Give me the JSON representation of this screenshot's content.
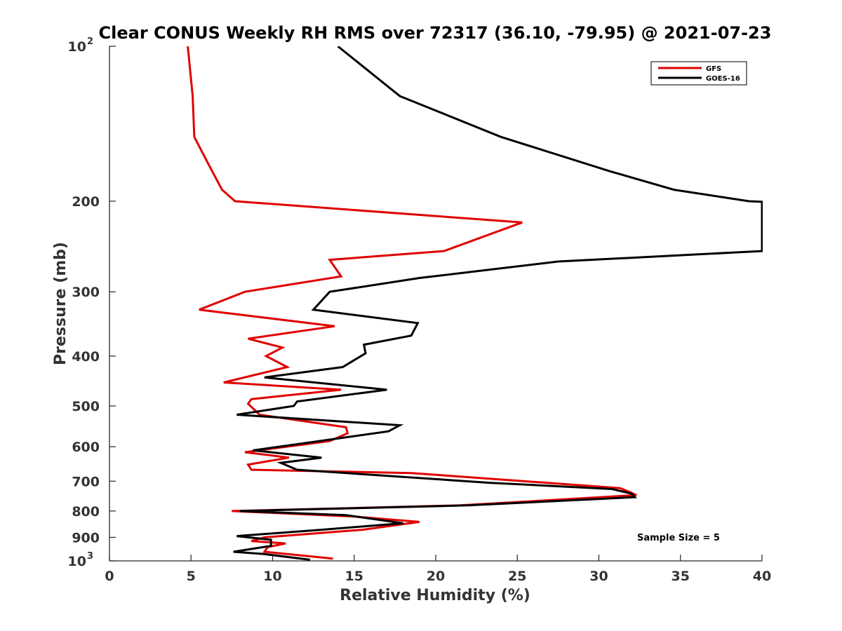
{
  "chart_data": {
    "type": "line",
    "title": "Clear CONUS Weekly RH RMS over 72317 (36.10, -79.95) @ 2021-07-23",
    "xlabel": "Relative Humidity (%)",
    "ylabel": "Pressure (mb)",
    "xlim": [
      0,
      40
    ],
    "ylim": [
      100,
      1000
    ],
    "y_scale": "log",
    "y_direction": "reversed",
    "grid": false,
    "legend_position": "top-right",
    "x_ticks": [
      "0",
      "5",
      "10",
      "15",
      "20",
      "25",
      "30",
      "35",
      "40"
    ],
    "y_ticks": [
      {
        "value": 100,
        "label": "10",
        "sup": "2"
      },
      {
        "value": 200,
        "label": "200"
      },
      {
        "value": 300,
        "label": "300"
      },
      {
        "value": 400,
        "label": "400"
      },
      {
        "value": 500,
        "label": "500"
      },
      {
        "value": 600,
        "label": "600"
      },
      {
        "value": 700,
        "label": "700"
      },
      {
        "value": 800,
        "label": "800"
      },
      {
        "value": 900,
        "label": "900"
      },
      {
        "value": 1000,
        "label": "10",
        "sup": "3"
      }
    ],
    "annotation": "Sample Size = 5",
    "series": [
      {
        "name": "GFS",
        "color": "#e00000",
        "points": [
          [
            4.8,
            100
          ],
          [
            5.1,
            125
          ],
          [
            5.2,
            150
          ],
          [
            6.3,
            175
          ],
          [
            6.9,
            190
          ],
          [
            7.7,
            200
          ],
          [
            25.3,
            220
          ],
          [
            20.5,
            250
          ],
          [
            13.5,
            260
          ],
          [
            14.2,
            280
          ],
          [
            8.3,
            300
          ],
          [
            5.5,
            325
          ],
          [
            13.8,
            350
          ],
          [
            8.5,
            370
          ],
          [
            10.6,
            385
          ],
          [
            9.6,
            400
          ],
          [
            10.9,
            420
          ],
          [
            7.0,
            450
          ],
          [
            14.2,
            465
          ],
          [
            8.7,
            485
          ],
          [
            8.5,
            495
          ],
          [
            9.2,
            520
          ],
          [
            14.5,
            550
          ],
          [
            14.6,
            565
          ],
          [
            13.5,
            585
          ],
          [
            8.3,
            615
          ],
          [
            11.0,
            630
          ],
          [
            8.5,
            650
          ],
          [
            8.7,
            665
          ],
          [
            18.5,
            675
          ],
          [
            31.3,
            722
          ],
          [
            31.9,
            735
          ],
          [
            32.3,
            745
          ],
          [
            21.5,
            780
          ],
          [
            7.5,
            800
          ],
          [
            15.0,
            820
          ],
          [
            19.0,
            840
          ],
          [
            15.5,
            870
          ],
          [
            9.5,
            900
          ],
          [
            8.7,
            915
          ],
          [
            10.8,
            925
          ],
          [
            9.7,
            940
          ],
          [
            9.5,
            960
          ],
          [
            13.7,
            990
          ]
        ]
      },
      {
        "name": "GOES-16",
        "color": "#000000",
        "points": [
          [
            14.0,
            100
          ],
          [
            17.8,
            125
          ],
          [
            24.0,
            150
          ],
          [
            30.7,
            175
          ],
          [
            34.6,
            190
          ],
          [
            39.2,
            200
          ],
          [
            40.0,
            200.5
          ],
          [
            40.0,
            250
          ],
          [
            27.5,
            262
          ],
          [
            19.0,
            282
          ],
          [
            13.5,
            300
          ],
          [
            12.5,
            325
          ],
          [
            18.9,
            345
          ],
          [
            18.5,
            365
          ],
          [
            15.6,
            380
          ],
          [
            15.7,
            395
          ],
          [
            14.3,
            420
          ],
          [
            9.5,
            440
          ],
          [
            17.0,
            465
          ],
          [
            11.5,
            490
          ],
          [
            11.3,
            500
          ],
          [
            7.8,
            520
          ],
          [
            17.8,
            545
          ],
          [
            17.1,
            560
          ],
          [
            8.8,
            610
          ],
          [
            13.0,
            630
          ],
          [
            10.5,
            645
          ],
          [
            11.5,
            665
          ],
          [
            23.3,
            705
          ],
          [
            30.8,
            725
          ],
          [
            32.0,
            740
          ],
          [
            32.2,
            752
          ],
          [
            22.0,
            780
          ],
          [
            8.0,
            800
          ],
          [
            14.5,
            815
          ],
          [
            18.0,
            845
          ],
          [
            13.0,
            870
          ],
          [
            7.8,
            895
          ],
          [
            9.9,
            910
          ],
          [
            9.9,
            935
          ],
          [
            7.6,
            960
          ],
          [
            9.5,
            970
          ],
          [
            12.3,
            995
          ]
        ]
      }
    ]
  }
}
